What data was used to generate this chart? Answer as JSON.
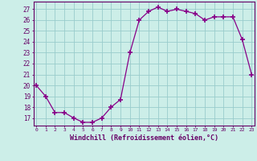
{
  "x": [
    0,
    1,
    2,
    3,
    4,
    5,
    6,
    7,
    8,
    9,
    10,
    11,
    12,
    13,
    14,
    15,
    16,
    17,
    18,
    19,
    20,
    21,
    22,
    23
  ],
  "y": [
    20,
    19,
    17.5,
    17.5,
    17,
    16.6,
    16.6,
    17,
    18,
    18.7,
    23,
    26,
    26.8,
    27.2,
    26.8,
    27.0,
    26.8,
    26.6,
    26,
    26.3,
    26.3,
    26.3,
    24.2,
    21
  ],
  "line_color": "#880088",
  "marker": "+",
  "marker_size": 4,
  "marker_lw": 1.2,
  "bg_color": "#cceee8",
  "grid_color": "#99cccc",
  "xlabel": "Windchill (Refroidissement éolien,°C)",
  "yticks": [
    17,
    18,
    19,
    20,
    21,
    22,
    23,
    24,
    25,
    26,
    27
  ],
  "xtick_labels": [
    "0",
    "1",
    "2",
    "3",
    "4",
    "5",
    "6",
    "7",
    "8",
    "9",
    "10",
    "11",
    "12",
    "13",
    "14",
    "15",
    "16",
    "17",
    "18",
    "19",
    "20",
    "21",
    "22",
    "23"
  ],
  "xlim": [
    -0.3,
    23.3
  ],
  "ylim": [
    16.3,
    27.7
  ],
  "axis_color": "#660066",
  "font_color": "#660066"
}
